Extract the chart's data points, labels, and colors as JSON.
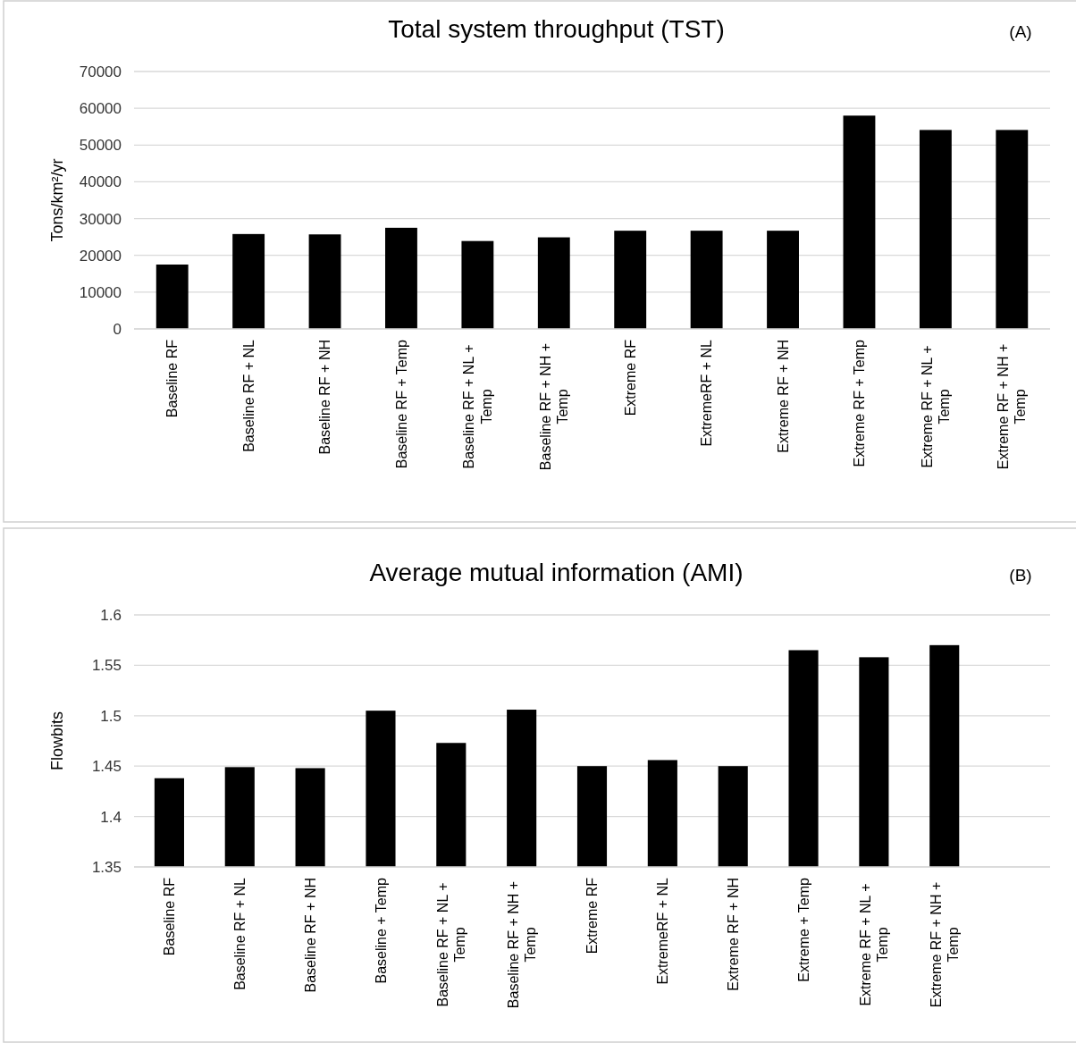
{
  "chart_data": [
    {
      "type": "bar",
      "title": "Total system throughput (TST)",
      "ylabel": "Tons/km²/yr",
      "annotations": [
        "(A)"
      ],
      "categories": [
        "Baseline RF",
        "Baseline RF + NL",
        "Baseline RF + NH",
        "Baseline RF + Temp",
        "Baseline RF + NL + Temp",
        "Baseline RF + NH + Temp",
        "Extreme RF",
        "ExtremeRF + NL",
        "Extreme RF + NH",
        "Extreme RF + Temp",
        "Extreme RF + NL + Temp",
        "Extreme RF + NH + Temp"
      ],
      "values": [
        17500,
        25800,
        25700,
        27500,
        23900,
        24900,
        26700,
        26700,
        26700,
        58000,
        54100,
        54100
      ],
      "color": "#000000",
      "ylim": [
        0,
        70000
      ],
      "yticks": [
        0,
        10000,
        20000,
        30000,
        40000,
        50000,
        60000,
        70000
      ],
      "grid": "y"
    },
    {
      "type": "bar",
      "title": "Average mutual information (AMI)",
      "ylabel": "Flowbits",
      "annotations": [
        "(B)"
      ],
      "categories": [
        "Baseline RF",
        "Baseline RF + NL",
        "Baseline RF + NH",
        "Baseline + Temp",
        "Baseline RF + NL + Temp",
        "Baseline RF + NH + Temp",
        "Extreme RF",
        "ExtremeRF + NL",
        "Extreme RF + NH",
        "Extreme + Temp",
        "Extreme RF + NL + Temp",
        "Extreme RF + NH + Temp",
        null
      ],
      "values": [
        1.438,
        1.449,
        1.448,
        1.505,
        1.473,
        1.506,
        1.45,
        1.456,
        1.45,
        1.565,
        1.558,
        1.57,
        null
      ],
      "color": "#000000",
      "ylim": [
        1.35,
        1.6
      ],
      "yticks": [
        1.35,
        1.4,
        1.45,
        1.5,
        1.55,
        1.6
      ],
      "grid": "y"
    }
  ]
}
